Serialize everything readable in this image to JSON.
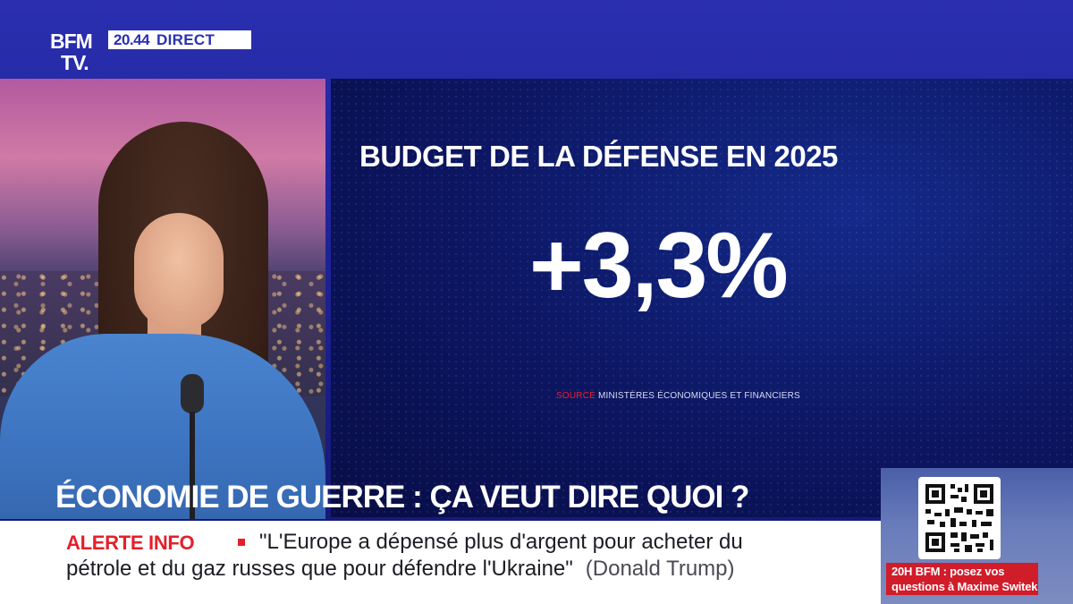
{
  "channel": {
    "logo_line1": "BFM",
    "logo_line2": "TV.",
    "time": "20.44",
    "live_label": "DIRECT"
  },
  "graphic": {
    "title": "BUDGET DE LA DÉFENSE EN 2025",
    "value": "+3,3%",
    "source_label": "SOURCE",
    "source_text": "MINISTÈRES ÉCONOMIQUES ET FINANCIERS"
  },
  "headline": "ÉCONOMIE DE GUERRE : ÇA VEUT DIRE QUOI ?",
  "ticker": {
    "alert_label": "ALERTE INFO",
    "line1": "\"L'Europe a dépensé plus d'argent pour acheter du",
    "line2": "pétrole et du gaz russes que pour défendre l'Ukraine\"",
    "attribution": "(Donald Trump)"
  },
  "promo": {
    "line1": "20H BFM : posez vos",
    "line2": "questions à Maxime Switek"
  },
  "colors": {
    "brand_blue": "#2b2fb4",
    "alert_red": "#e3202a",
    "panel_navy": "#0c1560"
  }
}
